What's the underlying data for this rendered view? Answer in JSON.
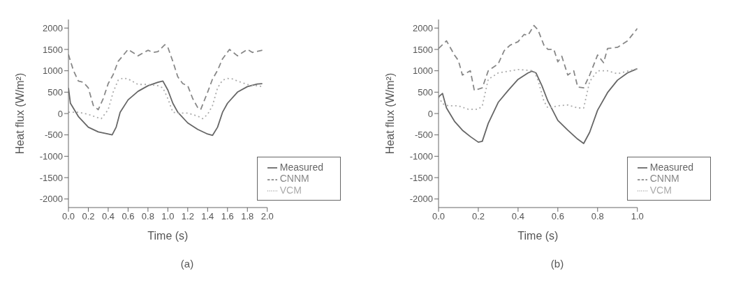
{
  "chart_data": [
    {
      "type": "line",
      "xlabel": "Time (s)",
      "ylabel": "Heat flux (W/m²)",
      "annotations": [
        "(a)"
      ],
      "legend": "bottom right",
      "xlim": [
        0,
        2
      ],
      "ylim": [
        -2200,
        2200
      ],
      "xticks": [
        {
          "value": 0,
          "label": "0.0"
        },
        {
          "value": 0.2,
          "label": "0.2"
        },
        {
          "value": 0.4,
          "label": "0.4"
        },
        {
          "value": 0.6,
          "label": "0.6"
        },
        {
          "value": 0.8,
          "label": "0.8"
        },
        {
          "value": 1,
          "label": "1.0"
        },
        {
          "value": 1.2,
          "label": "1.2"
        },
        {
          "value": 1.4,
          "label": "1.4"
        },
        {
          "value": 1.6,
          "label": "1.6"
        },
        {
          "value": 1.8,
          "label": "1.8"
        },
        {
          "value": 2,
          "label": "2.0"
        }
      ],
      "yticks": [
        -2000,
        -1500,
        -1000,
        -500,
        0,
        500,
        1000,
        1500,
        2000
      ],
      "series": [
        {
          "name": "Measured",
          "color": "#666666",
          "line_style": "solid",
          "x": [
            0,
            0.02,
            0.1,
            0.2,
            0.3,
            0.4,
            0.44,
            0.48,
            0.52,
            0.6,
            0.7,
            0.8,
            0.9,
            0.95,
            1,
            1.05,
            1.1,
            1.2,
            1.3,
            1.4,
            1.45,
            1.5,
            1.55,
            1.6,
            1.7,
            1.8,
            1.9,
            1.95
          ],
          "values": [
            600,
            240,
            -70,
            -320,
            -430,
            -480,
            -500,
            -320,
            30,
            320,
            520,
            650,
            730,
            760,
            550,
            240,
            30,
            -220,
            -370,
            -480,
            -510,
            -320,
            30,
            240,
            500,
            630,
            690,
            700
          ]
        },
        {
          "name": "CNNM",
          "color": "#888888",
          "line_style": "dashed",
          "x": [
            0,
            0.05,
            0.1,
            0.15,
            0.2,
            0.25,
            0.3,
            0.35,
            0.4,
            0.45,
            0.5,
            0.6,
            0.7,
            0.8,
            0.85,
            0.9,
            0.97,
            1,
            1.05,
            1.1,
            1.15,
            1.2,
            1.25,
            1.3,
            1.33,
            1.4,
            1.45,
            1.5,
            1.55,
            1.62,
            1.7,
            1.8,
            1.85,
            1.95
          ],
          "values": [
            1380,
            1010,
            760,
            730,
            600,
            190,
            90,
            350,
            700,
            910,
            1220,
            1500,
            1350,
            1480,
            1430,
            1450,
            1610,
            1550,
            1220,
            860,
            700,
            650,
            350,
            140,
            90,
            500,
            810,
            1010,
            1280,
            1500,
            1350,
            1500,
            1430,
            1480
          ]
        },
        {
          "name": "VCM",
          "color": "#aaaaaa",
          "line_style": "dotted",
          "x": [
            0,
            0.1,
            0.2,
            0.3,
            0.33,
            0.4,
            0.45,
            0.5,
            0.55,
            0.6,
            0.7,
            0.8,
            0.9,
            0.95,
            1,
            1.05,
            1.1,
            1.2,
            1.3,
            1.35,
            1.4,
            1.45,
            1.5,
            1.55,
            1.6,
            1.65,
            1.7,
            1.8,
            1.9,
            1.95
          ],
          "values": [
            30,
            30,
            -20,
            -100,
            -120,
            90,
            500,
            780,
            830,
            810,
            680,
            680,
            650,
            600,
            350,
            30,
            10,
            10,
            -60,
            -120,
            -20,
            190,
            600,
            780,
            820,
            810,
            760,
            680,
            650,
            630
          ]
        }
      ]
    },
    {
      "type": "line",
      "xlabel": "Time (s)",
      "ylabel": "Heat flux (W/m²)",
      "annotations": [
        "(b)"
      ],
      "legend": "bottom right",
      "xlim": [
        0,
        1
      ],
      "ylim": [
        -2200,
        2200
      ],
      "xticks": [
        {
          "value": 0,
          "label": "0.0"
        },
        {
          "value": 0.2,
          "label": "0.2"
        },
        {
          "value": 0.4,
          "label": "0.4"
        },
        {
          "value": 0.6,
          "label": "0.6"
        },
        {
          "value": 0.8,
          "label": "0.8"
        },
        {
          "value": 1,
          "label": "1.0"
        }
      ],
      "yticks": [
        -2000,
        -1500,
        -1000,
        -500,
        0,
        500,
        1000,
        1500,
        2000
      ],
      "series": [
        {
          "name": "Measured",
          "color": "#666666",
          "line_style": "solid",
          "x": [
            0,
            0.02,
            0.04,
            0.08,
            0.12,
            0.16,
            0.2,
            0.22,
            0.25,
            0.3,
            0.35,
            0.4,
            0.45,
            0.47,
            0.49,
            0.52,
            0.55,
            0.6,
            0.65,
            0.7,
            0.73,
            0.76,
            0.8,
            0.85,
            0.9,
            0.95,
            1
          ],
          "values": [
            390,
            470,
            130,
            -180,
            -390,
            -540,
            -670,
            -650,
            -230,
            260,
            540,
            800,
            950,
            990,
            950,
            650,
            290,
            -160,
            -390,
            -600,
            -700,
            -440,
            80,
            490,
            780,
            950,
            1050
          ]
        },
        {
          "name": "CNNM",
          "color": "#888888",
          "line_style": "dashed",
          "x": [
            0,
            0.04,
            0.08,
            0.1,
            0.12,
            0.16,
            0.18,
            0.22,
            0.25,
            0.3,
            0.33,
            0.36,
            0.4,
            0.43,
            0.45,
            0.48,
            0.5,
            0.53,
            0.55,
            0.58,
            0.6,
            0.62,
            0.65,
            0.68,
            0.7,
            0.73,
            0.76,
            0.8,
            0.83,
            0.85,
            0.9,
            0.95,
            1
          ],
          "values": [
            1520,
            1700,
            1370,
            1240,
            900,
            1000,
            540,
            600,
            1000,
            1160,
            1470,
            1600,
            1680,
            1850,
            1830,
            2060,
            1960,
            1600,
            1500,
            1500,
            1210,
            1340,
            900,
            1000,
            620,
            600,
            900,
            1370,
            1190,
            1520,
            1550,
            1700,
            1990
          ]
        },
        {
          "name": "VCM",
          "color": "#aaaaaa",
          "line_style": "dotted",
          "x": [
            0,
            0.02,
            0.05,
            0.1,
            0.15,
            0.2,
            0.22,
            0.25,
            0.3,
            0.4,
            0.48,
            0.5,
            0.53,
            0.55,
            0.6,
            0.65,
            0.7,
            0.73,
            0.76,
            0.8,
            0.85,
            0.9,
            1
          ],
          "values": [
            390,
            230,
            180,
            180,
            100,
            100,
            180,
            800,
            950,
            1030,
            1000,
            780,
            290,
            130,
            180,
            200,
            130,
            130,
            750,
            1000,
            1000,
            930,
            1050
          ]
        }
      ]
    }
  ]
}
